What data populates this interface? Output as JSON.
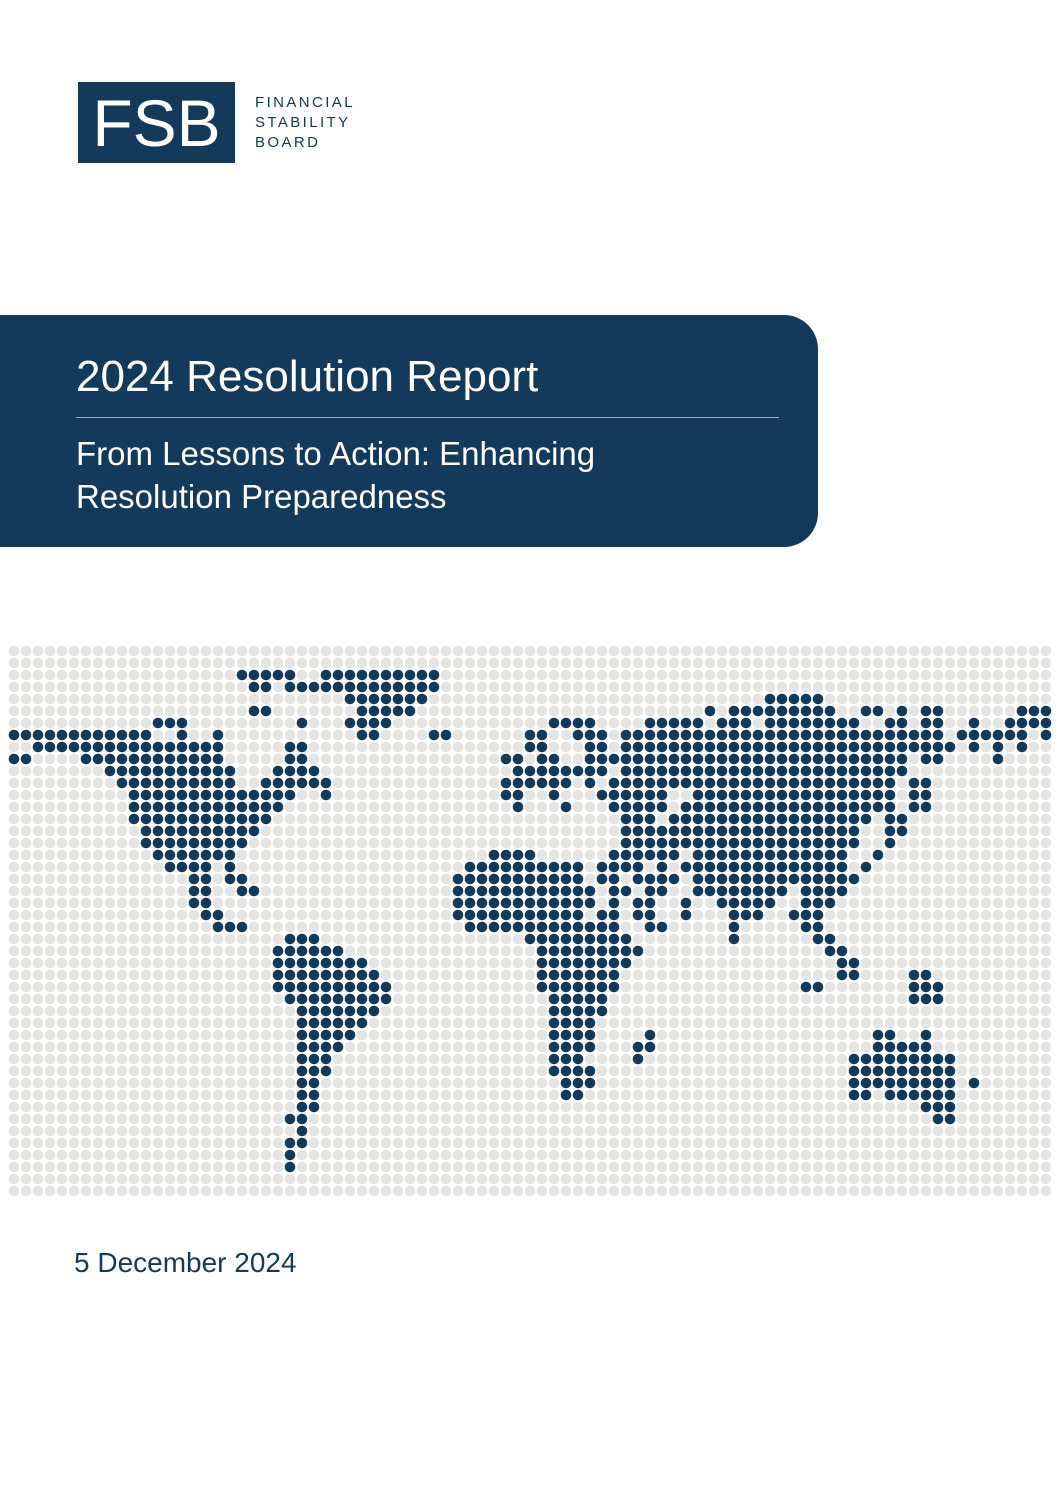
{
  "theme": {
    "navy": "#13395B",
    "sea_dot_color": "#E4E4E2",
    "divider_color": "#A6AFB7",
    "page_background": "#FFFFFF"
  },
  "logo": {
    "acronym": "FSB",
    "wordmark_lines": [
      "FINANCIAL",
      "STABILITY",
      "BOARD"
    ]
  },
  "banner": {
    "title": "2024 Resolution Report",
    "subtitle_lines": [
      "From Lessons to Action: Enhancing",
      "Resolution Preparedness"
    ]
  },
  "footer": {
    "date": "5 December 2024"
  },
  "map": {
    "description": "dotted-world-map",
    "cols": 87,
    "rows": 46,
    "pitch": 12,
    "dot_radius": 5.3,
    "land_color": "#13395B",
    "sea_dot_color": "#E4E4E2",
    "land_segments": [
      [],
      [],
      [
        [
          19,
          23
        ],
        [
          26,
          35
        ]
      ],
      [
        [
          20,
          21
        ],
        [
          23,
          35
        ]
      ],
      [
        [
          28,
          34
        ],
        [
          63,
          67
        ]
      ],
      [
        [
          20,
          21
        ],
        [
          29,
          33
        ],
        [
          58,
          58
        ],
        [
          60,
          68
        ],
        [
          71,
          72
        ],
        [
          74,
          74
        ],
        [
          76,
          77
        ],
        [
          84,
          86
        ]
      ],
      [
        [
          12,
          14
        ],
        [
          24,
          24
        ],
        [
          28,
          31
        ],
        [
          45,
          48
        ],
        [
          53,
          57
        ],
        [
          59,
          61
        ],
        [
          63,
          70
        ],
        [
          73,
          74
        ],
        [
          76,
          77
        ],
        [
          80,
          80
        ],
        [
          83,
          86
        ]
      ],
      [
        [
          0,
          11
        ],
        [
          14,
          14
        ],
        [
          17,
          17
        ],
        [
          29,
          30
        ],
        [
          35,
          36
        ],
        [
          43,
          44
        ],
        [
          47,
          49
        ],
        [
          51,
          77
        ],
        [
          79,
          84
        ],
        [
          86,
          86
        ]
      ],
      [
        [
          2,
          17
        ],
        [
          23,
          24
        ],
        [
          43,
          44
        ],
        [
          48,
          49
        ],
        [
          51,
          78
        ],
        [
          80,
          80
        ],
        [
          82,
          82
        ],
        [
          84,
          84
        ]
      ],
      [
        [
          0,
          1
        ],
        [
          6,
          17
        ],
        [
          23,
          24
        ],
        [
          41,
          42
        ],
        [
          44,
          45
        ],
        [
          48,
          74
        ],
        [
          76,
          77
        ],
        [
          82,
          82
        ]
      ],
      [
        [
          8,
          18
        ],
        [
          22,
          25
        ],
        [
          42,
          49
        ],
        [
          51,
          74
        ]
      ],
      [
        [
          9,
          18
        ],
        [
          21,
          26
        ],
        [
          41,
          46
        ],
        [
          48,
          48
        ],
        [
          50,
          73
        ],
        [
          75,
          76
        ]
      ],
      [
        [
          10,
          23
        ],
        [
          26,
          26
        ],
        [
          41,
          42
        ],
        [
          45,
          45
        ],
        [
          49,
          54
        ],
        [
          57,
          73
        ],
        [
          75,
          76
        ]
      ],
      [
        [
          10,
          22
        ],
        [
          42,
          42
        ],
        [
          46,
          46
        ],
        [
          50,
          54
        ],
        [
          56,
          73
        ],
        [
          75,
          76
        ]
      ],
      [
        [
          10,
          21
        ],
        [
          51,
          53
        ],
        [
          55,
          71
        ],
        [
          73,
          74
        ]
      ],
      [
        [
          11,
          20
        ],
        [
          51,
          70
        ],
        [
          73,
          74
        ]
      ],
      [
        [
          11,
          19
        ],
        [
          51,
          70
        ],
        [
          73,
          73
        ]
      ],
      [
        [
          12,
          18
        ],
        [
          40,
          43
        ],
        [
          50,
          55
        ],
        [
          57,
          69
        ],
        [
          72,
          72
        ]
      ],
      [
        [
          13,
          16
        ],
        [
          18,
          18
        ],
        [
          38,
          47
        ],
        [
          49,
          52
        ],
        [
          54,
          54
        ],
        [
          56,
          69
        ],
        [
          71,
          71
        ]
      ],
      [
        [
          15,
          16
        ],
        [
          18,
          19
        ],
        [
          37,
          47
        ],
        [
          49,
          50
        ],
        [
          52,
          55
        ],
        [
          57,
          70
        ]
      ],
      [
        [
          15,
          16
        ],
        [
          19,
          20
        ],
        [
          37,
          48
        ],
        [
          50,
          51
        ],
        [
          53,
          54
        ],
        [
          57,
          64
        ],
        [
          66,
          69
        ]
      ],
      [
        [
          15,
          16
        ],
        [
          37,
          48
        ],
        [
          50,
          50
        ],
        [
          52,
          53
        ],
        [
          56,
          56
        ],
        [
          59,
          63
        ],
        [
          66,
          68
        ]
      ],
      [
        [
          16,
          17
        ],
        [
          37,
          47
        ],
        [
          49,
          50
        ],
        [
          52,
          53
        ],
        [
          56,
          56
        ],
        [
          60,
          62
        ],
        [
          65,
          67
        ]
      ],
      [
        [
          17,
          19
        ],
        [
          38,
          50
        ],
        [
          53,
          54
        ],
        [
          60,
          60
        ],
        [
          66,
          67
        ]
      ],
      [
        [
          23,
          25
        ],
        [
          43,
          51
        ],
        [
          60,
          60
        ],
        [
          67,
          68
        ]
      ],
      [
        [
          22,
          27
        ],
        [
          44,
          52
        ],
        [
          68,
          69
        ]
      ],
      [
        [
          22,
          29
        ],
        [
          44,
          51
        ],
        [
          69,
          70
        ]
      ],
      [
        [
          22,
          30
        ],
        [
          44,
          50
        ],
        [
          69,
          70
        ],
        [
          75,
          76
        ]
      ],
      [
        [
          22,
          31
        ],
        [
          44,
          50
        ],
        [
          66,
          67
        ],
        [
          75,
          77
        ]
      ],
      [
        [
          23,
          31
        ],
        [
          45,
          49
        ],
        [
          75,
          77
        ]
      ],
      [
        [
          24,
          30
        ],
        [
          45,
          49
        ]
      ],
      [
        [
          24,
          29
        ],
        [
          45,
          48
        ]
      ],
      [
        [
          24,
          28
        ],
        [
          45,
          48
        ],
        [
          53,
          53
        ],
        [
          72,
          73
        ],
        [
          76,
          76
        ]
      ],
      [
        [
          24,
          27
        ],
        [
          45,
          48
        ],
        [
          52,
          53
        ],
        [
          72,
          76
        ]
      ],
      [
        [
          24,
          26
        ],
        [
          45,
          47
        ],
        [
          52,
          52
        ],
        [
          70,
          78
        ]
      ],
      [
        [
          24,
          26
        ],
        [
          45,
          48
        ],
        [
          70,
          78
        ]
      ],
      [
        [
          24,
          25
        ],
        [
          46,
          48
        ],
        [
          70,
          78
        ],
        [
          80,
          80
        ]
      ],
      [
        [
          24,
          25
        ],
        [
          46,
          47
        ],
        [
          70,
          71
        ],
        [
          73,
          78
        ]
      ],
      [
        [
          24,
          25
        ],
        [
          76,
          78
        ]
      ],
      [
        [
          23,
          24
        ],
        [
          77,
          78
        ]
      ],
      [
        [
          24,
          24
        ]
      ],
      [
        [
          23,
          24
        ]
      ],
      [
        [
          23,
          23
        ]
      ],
      [
        [
          23,
          23
        ]
      ],
      [],
      []
    ]
  }
}
